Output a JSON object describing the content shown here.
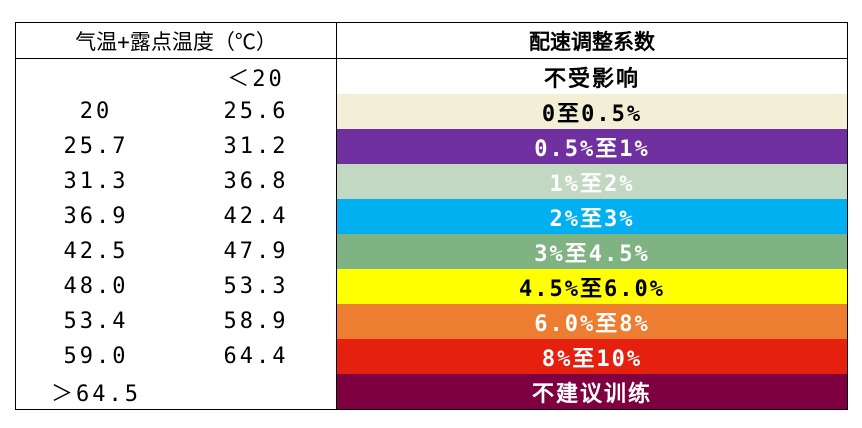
{
  "table": {
    "header": [
      "气温+露点温度（℃）",
      "配速调整系数"
    ],
    "rows": [
      {
        "low": null,
        "high": "＜20",
        "factor": "不受影响",
        "fill": "#ffffff",
        "text_color": "#000000"
      },
      {
        "low": "20",
        "high": "25.6",
        "factor": "0至0.5%",
        "fill": "#f2efd6",
        "text_color": "#000000"
      },
      {
        "low": "25.7",
        "high": "31.2",
        "factor": "0.5%至1%",
        "fill": "#7030a0",
        "text_color": "#ffffff"
      },
      {
        "low": "31.3",
        "high": "36.8",
        "factor": "1%至2%",
        "fill": "#c3d8c3",
        "text_color": "#ffffff"
      },
      {
        "low": "36.9",
        "high": "42.4",
        "factor": "2%至3%",
        "fill": "#00b0f0",
        "text_color": "#ffffff"
      },
      {
        "low": "42.5",
        "high": "47.9",
        "factor": "3%至4.5%",
        "fill": "#80b383",
        "text_color": "#ffffff"
      },
      {
        "low": "48.0",
        "high": "53.3",
        "factor": "4.5%至6.0%",
        "fill": "#ffff00",
        "text_color": "#000000"
      },
      {
        "low": "53.4",
        "high": "58.9",
        "factor": "6.0%至8%",
        "fill": "#ed7d31",
        "text_color": "#ffffff"
      },
      {
        "low": "59.0",
        "high": "64.4",
        "factor": "8%至10%",
        "fill": "#e5200e",
        "text_color": "#ffffff"
      },
      {
        "low": "＞64.5",
        "high": null,
        "factor": "不建议训练",
        "fill": "#7f0040",
        "text_color": "#ffffff"
      }
    ]
  }
}
